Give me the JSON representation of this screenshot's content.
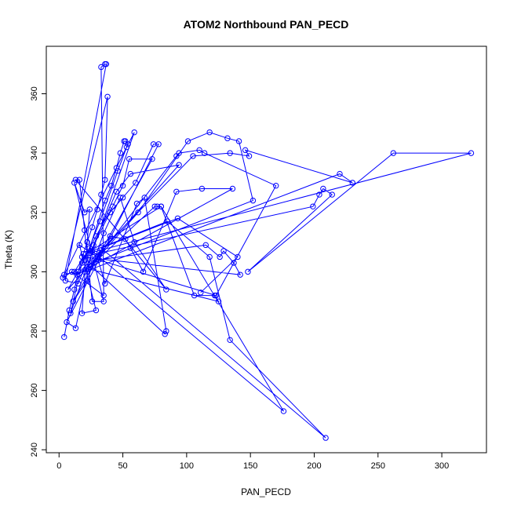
{
  "chart_data": {
    "type": "line",
    "title": "ATOM2 Northbound PAN_PECD",
    "xlabel": "PAN_PECD",
    "ylabel": "Theta (K)",
    "xlim": [
      -10,
      335
    ],
    "ylim": [
      239,
      376
    ],
    "x_ticks": [
      0,
      50,
      100,
      150,
      200,
      250,
      300
    ],
    "y_ticks": [
      240,
      260,
      280,
      300,
      320,
      340,
      360
    ],
    "grid": false,
    "legend": "none",
    "color": "#0000ff",
    "marker": "open-circle",
    "points": [
      [
        4,
        278
      ],
      [
        8,
        287
      ],
      [
        12,
        294
      ],
      [
        15,
        300
      ],
      [
        19,
        306
      ],
      [
        22,
        310
      ],
      [
        26,
        315
      ],
      [
        30,
        321
      ],
      [
        33,
        326
      ],
      [
        36,
        331
      ],
      [
        38,
        359
      ],
      [
        4,
        299
      ],
      [
        12,
        300
      ],
      [
        24,
        308
      ],
      [
        36,
        324
      ],
      [
        41,
        329
      ],
      [
        45,
        335
      ],
      [
        48,
        340
      ],
      [
        51,
        344
      ],
      [
        52,
        344
      ],
      [
        54,
        343
      ],
      [
        3,
        298
      ],
      [
        10,
        300
      ],
      [
        35,
        292
      ],
      [
        33,
        369
      ],
      [
        36,
        370
      ],
      [
        37,
        370
      ],
      [
        5,
        297
      ],
      [
        15,
        296
      ],
      [
        25,
        307
      ],
      [
        40,
        320
      ],
      [
        50,
        325
      ],
      [
        60,
        330
      ],
      [
        74,
        343
      ],
      [
        78,
        343
      ],
      [
        6,
        283
      ],
      [
        13,
        281
      ],
      [
        27,
        309
      ],
      [
        45,
        327
      ],
      [
        56,
        333
      ],
      [
        94,
        336
      ],
      [
        7,
        294
      ],
      [
        20,
        304
      ],
      [
        32,
        317
      ],
      [
        46,
        334
      ],
      [
        53,
        342
      ],
      [
        59,
        347
      ],
      [
        9,
        286
      ],
      [
        18,
        303
      ],
      [
        29,
        312
      ],
      [
        42,
        322
      ],
      [
        50,
        329
      ],
      [
        55,
        338
      ],
      [
        73,
        338
      ],
      [
        11,
        290
      ],
      [
        22,
        297
      ],
      [
        35,
        313
      ],
      [
        48,
        325
      ],
      [
        59,
        310
      ],
      [
        84,
        294
      ],
      [
        13,
        331
      ],
      [
        16,
        331
      ],
      [
        20,
        314
      ],
      [
        26,
        290
      ],
      [
        35,
        290
      ],
      [
        12,
        330
      ],
      [
        20,
        320
      ],
      [
        24,
        321
      ],
      [
        18,
        286
      ],
      [
        29,
        287
      ],
      [
        16,
        309
      ],
      [
        30,
        305
      ],
      [
        36,
        296
      ],
      [
        61,
        323
      ],
      [
        67,
        325
      ],
      [
        84,
        280
      ],
      [
        83,
        279
      ],
      [
        25,
        302
      ],
      [
        40,
        312
      ],
      [
        52,
        311
      ],
      [
        56,
        308
      ],
      [
        66,
        300
      ],
      [
        92,
        327
      ],
      [
        112,
        328
      ],
      [
        136,
        328
      ],
      [
        14,
        299
      ],
      [
        105,
        339
      ],
      [
        134,
        340
      ],
      [
        149,
        339
      ],
      [
        146,
        341
      ],
      [
        230,
        330
      ],
      [
        220,
        333
      ],
      [
        20,
        300
      ],
      [
        75,
        322
      ],
      [
        77,
        322
      ],
      [
        80,
        322
      ],
      [
        106,
        292
      ],
      [
        122,
        292
      ],
      [
        125,
        290
      ],
      [
        23,
        301
      ],
      [
        62,
        320
      ],
      [
        101,
        344
      ],
      [
        118,
        347
      ],
      [
        132,
        345
      ],
      [
        141,
        344
      ],
      [
        152,
        324
      ],
      [
        27,
        303
      ],
      [
        92,
        339
      ],
      [
        94,
        340
      ],
      [
        110,
        341
      ],
      [
        114,
        340
      ],
      [
        170,
        329
      ],
      [
        123,
        292
      ],
      [
        31,
        304
      ],
      [
        115,
        309
      ],
      [
        126,
        305
      ],
      [
        129,
        307
      ],
      [
        137,
        303
      ],
      [
        142,
        299
      ],
      [
        18,
        305
      ],
      [
        199,
        322
      ],
      [
        204,
        326
      ],
      [
        207,
        328
      ],
      [
        214,
        326
      ],
      [
        148,
        300
      ],
      [
        262,
        340
      ],
      [
        323,
        340
      ],
      [
        21,
        306
      ],
      [
        80,
        322
      ],
      [
        176,
        253
      ],
      [
        26,
        307
      ],
      [
        85,
        317
      ],
      [
        118,
        305
      ],
      [
        134,
        277
      ],
      [
        209,
        244
      ],
      [
        33,
        308
      ],
      [
        93,
        318
      ],
      [
        140,
        305
      ],
      [
        111,
        293
      ]
    ]
  }
}
